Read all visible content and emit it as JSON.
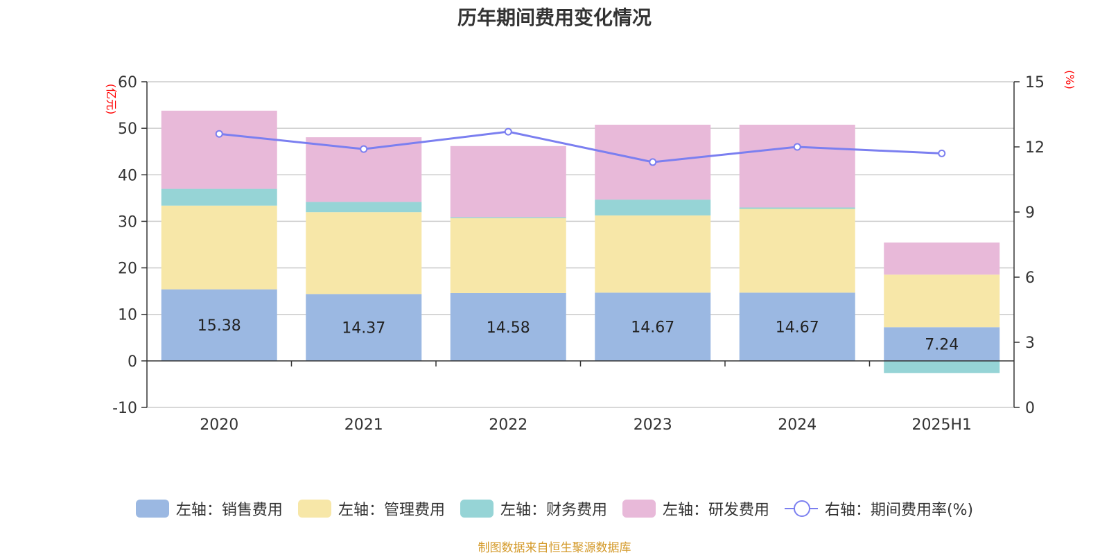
{
  "chart_data": {
    "type": "bar",
    "title": "历年期间费用变化情况",
    "categories": [
      "2020",
      "2021",
      "2022",
      "2023",
      "2024",
      "2025H1"
    ],
    "left_axis": {
      "unit": "(亿元)",
      "ylim": [
        -10,
        60
      ],
      "ticks": [
        "60",
        "50",
        "40",
        "30",
        "20",
        "10",
        "0",
        "-10"
      ]
    },
    "right_axis": {
      "unit": "(%)",
      "ylim": [
        0,
        15
      ],
      "ticks": [
        "15",
        "12",
        "9",
        "6",
        "3",
        "0"
      ]
    },
    "series": [
      {
        "name": "左轴：销售费用",
        "color": "#9bb8e2",
        "values": [
          15.38,
          14.37,
          14.58,
          14.67,
          14.67,
          7.24
        ],
        "data_labels": [
          "15.38",
          "14.37",
          "14.58",
          "14.67",
          "14.67",
          "7.24"
        ]
      },
      {
        "name": "左轴：管理费用",
        "color": "#f7e7a8",
        "values": [
          18.0,
          17.6,
          16.1,
          16.6,
          18.0,
          11.3
        ]
      },
      {
        "name": "左轴：财务费用",
        "color": "#96d4d6",
        "values": [
          3.6,
          2.2,
          0.2,
          3.4,
          0.3,
          -2.6
        ]
      },
      {
        "name": "左轴：研发费用",
        "color": "#e8b9d9",
        "values": [
          16.8,
          13.9,
          15.3,
          16.1,
          17.8,
          6.9
        ]
      }
    ],
    "line_series": {
      "name": "右轴：期间费用率(%)",
      "color": "#7b7ff0",
      "axis": "right",
      "values": [
        12.6,
        11.9,
        12.7,
        11.3,
        12.0,
        11.7
      ]
    },
    "grid": true,
    "legend_position": "bottom"
  },
  "source_note": "制图数据来自恒生聚源数据库"
}
